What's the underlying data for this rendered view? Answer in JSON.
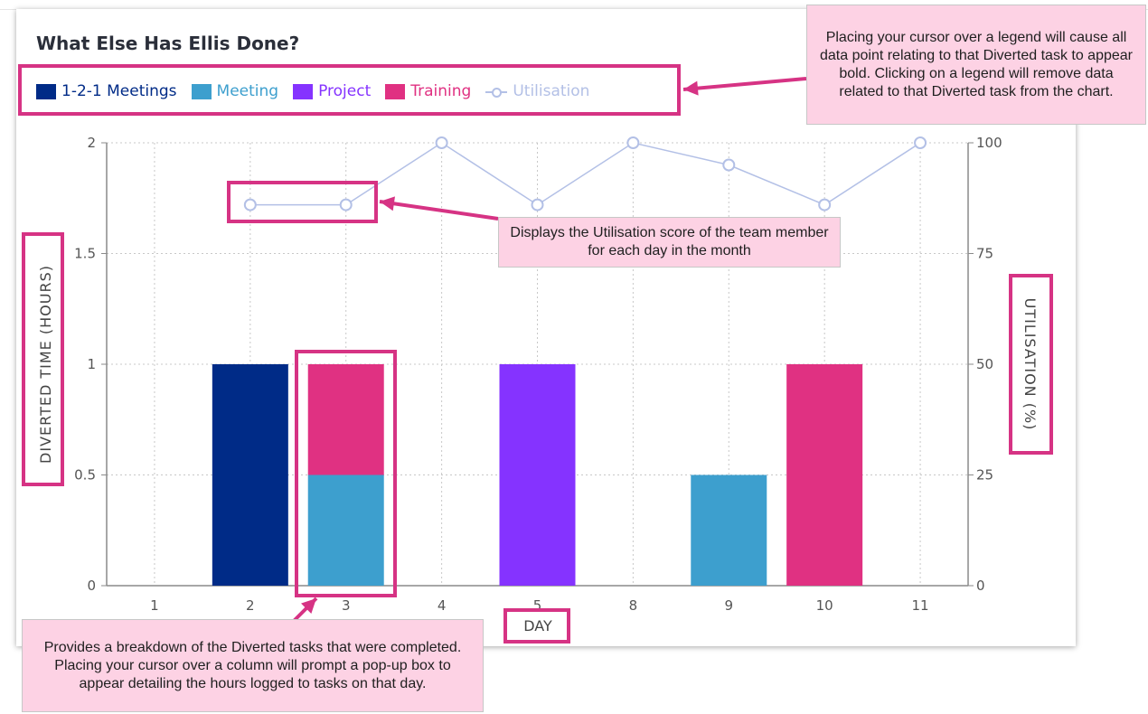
{
  "title": "What Else Has Ellis Done?",
  "legend": [
    {
      "label": "1-2-1 Meetings",
      "color": "#002b87"
    },
    {
      "label": "Meeting",
      "color": "#3d9fce"
    },
    {
      "label": "Project",
      "color": "#8533ff"
    },
    {
      "label": "Training",
      "color": "#e03182"
    },
    {
      "label": "Utilisation",
      "color": "#b3c0e6",
      "style": "line-with-circle-markers"
    }
  ],
  "callouts": {
    "legend": "Placing your cursor over a legend will cause all data point relating to that Diverted task to appear bold. Clicking on a legend will remove data related to that Diverted task from the chart.",
    "utilisation": "Displays the Utilisation score of the team member for each day in the month",
    "columns": "Provides a breakdown of the Diverted tasks that were completed. Placing your cursor over a column will prompt a pop-up box to appear detailing the hours logged to tasks on that day."
  },
  "chart_data": {
    "type": "bar",
    "stacked": true,
    "categories": [
      "1",
      "2",
      "3",
      "4",
      "5",
      "8",
      "9",
      "10",
      "11"
    ],
    "series": [
      {
        "name": "1-2-1 Meetings",
        "values": [
          0,
          1,
          0,
          0,
          0,
          0,
          0,
          0,
          0
        ],
        "color": "#002b87"
      },
      {
        "name": "Meeting",
        "values": [
          0,
          0,
          0.5,
          0,
          0,
          0,
          0.5,
          0,
          0
        ],
        "color": "#3d9fce"
      },
      {
        "name": "Project",
        "values": [
          0,
          0,
          0,
          0,
          1,
          0,
          0,
          0,
          0
        ],
        "color": "#8533ff"
      },
      {
        "name": "Training",
        "values": [
          0,
          0,
          0.5,
          0,
          0,
          0,
          0,
          1,
          0
        ],
        "color": "#e03182"
      },
      {
        "name": "Utilisation",
        "type": "line",
        "axis": "right",
        "color": "#b3c0e6",
        "values": [
          null,
          86,
          86,
          100,
          86,
          100,
          95,
          86,
          100
        ]
      }
    ],
    "xlabel": "DAY",
    "ylabel": "DIVERTED TIME (HOURS)",
    "y2label": "UTILISATION (%)",
    "ylim": [
      0,
      2
    ],
    "y2lim": [
      0,
      100
    ],
    "yticks": [
      "0",
      "0.5",
      "1",
      "1.5",
      "2"
    ],
    "y2ticks": [
      "0",
      "25",
      "50",
      "75",
      "100"
    ],
    "grid": "dotted",
    "legend_position": "top-left"
  }
}
